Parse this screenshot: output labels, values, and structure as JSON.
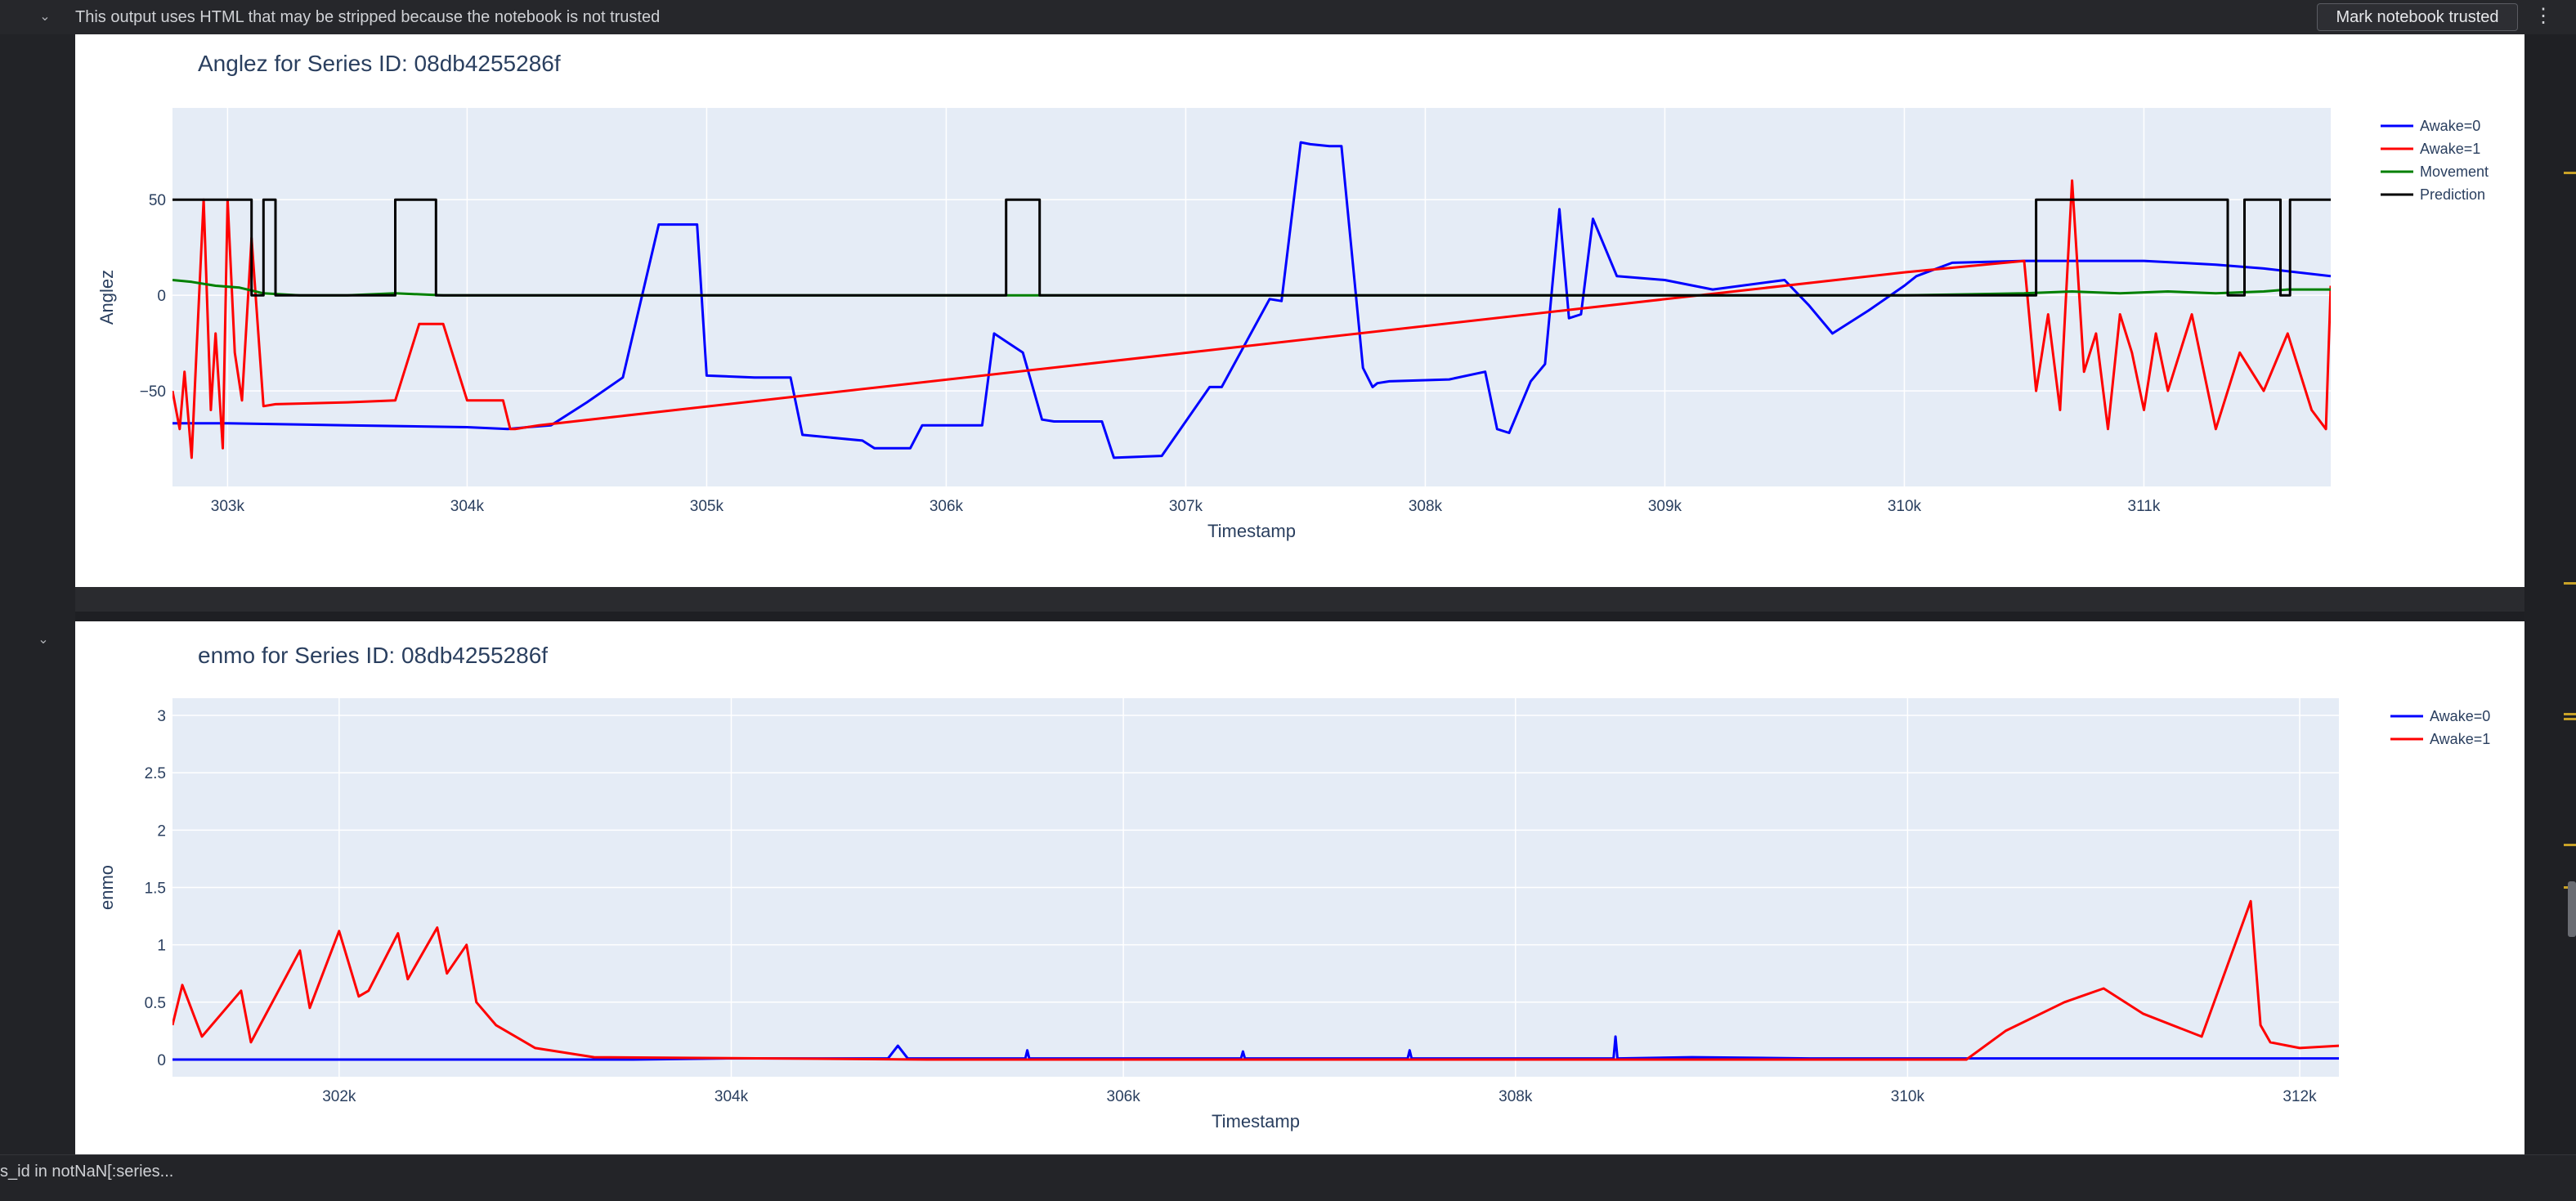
{
  "notice": {
    "message": "This output uses HTML that may be stripped because the notebook is not trusted",
    "trust_button": "Mark notebook trusted",
    "menu_glyph": "⋮",
    "chevron": "⌄"
  },
  "status_bar": {
    "text": "s_id in notNaN[:series..."
  },
  "colors": {
    "awake0": "#0000ff",
    "awake1": "#ff0000",
    "movement": "#008000",
    "prediction": "#000000",
    "plot_bg": "#e5ecf6",
    "text": "#2a3f5f"
  },
  "chart_data": [
    {
      "type": "line",
      "title": "Anglez for Series ID: 08db4255286f",
      "xlabel": "Timestamp",
      "ylabel": "Anglez",
      "xlim": [
        302770,
        311780
      ],
      "ylim": [
        -100,
        98
      ],
      "x_ticks": [
        303000,
        304000,
        305000,
        306000,
        307000,
        308000,
        309000,
        310000,
        311000
      ],
      "x_tick_labels": [
        "303k",
        "304k",
        "305k",
        "306k",
        "307k",
        "308k",
        "309k",
        "310k",
        "311k"
      ],
      "y_ticks": [
        -50,
        0,
        50
      ],
      "y_tick_labels": [
        "−50",
        "0",
        "50"
      ],
      "legend_position": "top-right",
      "series": [
        {
          "name": "Awake=0",
          "x": [
            302770,
            303000,
            303500,
            304000,
            304170,
            304250,
            304350,
            304500,
            304650,
            304800,
            304960,
            305000,
            305200,
            305350,
            305400,
            305650,
            305700,
            305850,
            305900,
            306150,
            306200,
            306260,
            306320,
            306400,
            306450,
            306650,
            306700,
            306900,
            306950,
            307100,
            307150,
            307350,
            307400,
            307480,
            307520,
            307600,
            307650,
            307740,
            307780,
            307800,
            307850,
            308100,
            308250,
            308300,
            308350,
            308440,
            308500,
            308560,
            308600,
            308650,
            308700,
            308800,
            309000,
            309200,
            309500,
            309600,
            309700,
            309850,
            310000,
            310050,
            310200,
            310500,
            310700,
            311000,
            311300,
            311500,
            311780
          ],
          "y": [
            -67,
            -67,
            -68,
            -69,
            -70,
            -69,
            -68,
            -56,
            -43,
            37,
            37,
            -42,
            -43,
            -43,
            -73,
            -76,
            -80,
            -80,
            -68,
            -68,
            -20,
            -25,
            -30,
            -65,
            -66,
            -66,
            -85,
            -84,
            -75,
            -48,
            -48,
            -2,
            -3,
            80,
            79,
            78,
            78,
            -38,
            -48,
            -46,
            -45,
            -44,
            -40,
            -70,
            -72,
            -45,
            -36,
            45,
            -12,
            -10,
            40,
            10,
            8,
            3,
            8,
            -5,
            -20,
            -8,
            5,
            10,
            17,
            18,
            18,
            18,
            16,
            14,
            10
          ]
        },
        {
          "name": "Awake=1",
          "x": [
            302770,
            302800,
            302820,
            302850,
            302870,
            302900,
            302930,
            302950,
            302980,
            303000,
            303030,
            303060,
            303100,
            303150,
            303200,
            303500,
            303700,
            303800,
            303900,
            304000,
            304150,
            304180,
            304200,
            304300,
            310000,
            310500,
            310550,
            310600,
            310650,
            310700,
            310750,
            310800,
            310850,
            310900,
            310950,
            311000,
            311050,
            311100,
            311200,
            311300,
            311400,
            311500,
            311600,
            311700,
            311760,
            311780
          ],
          "y": [
            -50,
            -70,
            -40,
            -85,
            -30,
            50,
            -60,
            -20,
            -80,
            50,
            -30,
            -55,
            30,
            -58,
            -57,
            -56,
            -55,
            -15,
            -15,
            -55,
            -55,
            -70,
            -70,
            -68,
            12,
            18,
            -50,
            -10,
            -60,
            60,
            -40,
            -20,
            -70,
            -10,
            -30,
            -60,
            -20,
            -50,
            -10,
            -70,
            -30,
            -50,
            -20,
            -60,
            -70,
            5
          ]
        },
        {
          "name": "Movement",
          "x": [
            302770,
            302850,
            302950,
            303050,
            303150,
            303300,
            303500,
            303700,
            303900,
            304100,
            305000,
            306000,
            307000,
            308000,
            309000,
            310000,
            310500,
            310700,
            310900,
            311100,
            311300,
            311500,
            311600,
            311780
          ],
          "y": [
            8,
            7,
            5,
            4,
            1,
            0,
            0,
            1,
            0,
            0,
            0,
            0,
            0,
            0,
            0,
            0,
            1,
            2,
            1,
            2,
            1,
            2,
            3,
            3
          ],
          "step": true
        },
        {
          "name": "Prediction",
          "x": [
            302770,
            303100,
            303100,
            303150,
            303150,
            303200,
            303200,
            303200,
            303200,
            303700,
            303700,
            303870,
            303870,
            306250,
            306250,
            306390,
            306390,
            310550,
            310550,
            311350,
            311350,
            311420,
            311420,
            311570,
            311570,
            311610,
            311610,
            311780
          ],
          "y": [
            50,
            50,
            0,
            0,
            50,
            50,
            0,
            0,
            0,
            0,
            50,
            50,
            0,
            0,
            50,
            50,
            0,
            0,
            50,
            50,
            0,
            0,
            50,
            50,
            0,
            0,
            50,
            50
          ]
        }
      ]
    },
    {
      "type": "line",
      "title": "enmo for Series ID: 08db4255286f",
      "xlabel": "Timestamp",
      "ylabel": "enmo",
      "xlim": [
        301150,
        312200
      ],
      "ylim": [
        -0.15,
        3.15
      ],
      "x_ticks": [
        302000,
        304000,
        306000,
        308000,
        310000,
        312000
      ],
      "x_tick_labels": [
        "302k",
        "304k",
        "306k",
        "308k",
        "310k",
        "312k"
      ],
      "y_ticks": [
        0,
        0.5,
        1,
        1.5,
        2,
        2.5,
        3
      ],
      "y_tick_labels": [
        "0",
        "0.5",
        "1",
        "1.5",
        "2",
        "2.5",
        "3"
      ],
      "legend_position": "top-right",
      "series": [
        {
          "name": "Awake=0",
          "x": [
            301150,
            303500,
            304000,
            304800,
            304850,
            304900,
            305500,
            305510,
            305520,
            306600,
            306610,
            306620,
            307450,
            307460,
            307470,
            308500,
            308510,
            308520,
            308900,
            309500,
            310000,
            312200
          ],
          "y": [
            0,
            0,
            0.01,
            0.01,
            0.12,
            0.01,
            0.01,
            0.08,
            0.01,
            0.01,
            0.07,
            0.01,
            0.01,
            0.08,
            0.01,
            0.01,
            0.2,
            0.01,
            0.02,
            0.01,
            0.01,
            0.01
          ],
          "impulse_points": true
        },
        {
          "name": "Awake=1",
          "x": [
            301150,
            301200,
            301300,
            301500,
            301550,
            301800,
            301850,
            302000,
            302100,
            302150,
            302300,
            302350,
            302500,
            302550,
            302650,
            302700,
            302800,
            303000,
            303300,
            305000,
            310300,
            310500,
            310800,
            311000,
            311200,
            311500,
            311750,
            311800,
            311850,
            312000,
            312200
          ],
          "y": [
            0.3,
            0.65,
            0.2,
            0.6,
            0.15,
            0.95,
            0.45,
            1.12,
            0.55,
            0.6,
            1.1,
            0.7,
            1.15,
            0.75,
            1.0,
            0.5,
            0.3,
            0.1,
            0.02,
            0.0,
            0.0,
            0.25,
            0.5,
            0.62,
            0.4,
            0.2,
            1.38,
            0.3,
            0.15,
            0.1,
            0.12
          ],
          "impulse_points": true
        }
      ]
    }
  ]
}
